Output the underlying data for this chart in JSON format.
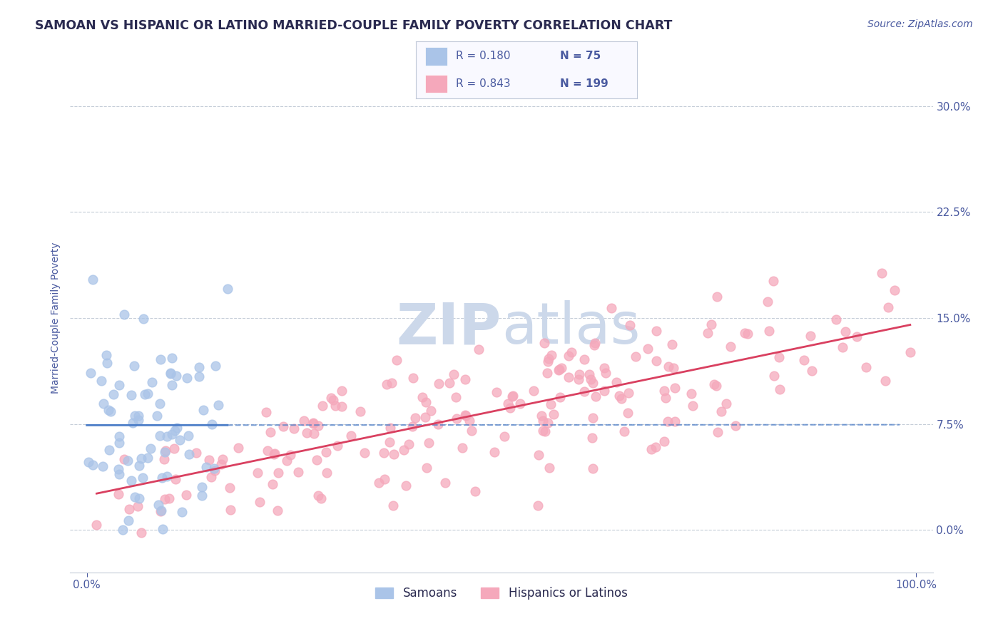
{
  "title": "SAMOAN VS HISPANIC OR LATINO MARRIED-COUPLE FAMILY POVERTY CORRELATION CHART",
  "source": "Source: ZipAtlas.com",
  "ylabel": "Married-Couple Family Poverty",
  "xlim": [
    -0.02,
    1.02
  ],
  "ylim": [
    -0.03,
    0.33
  ],
  "yticks": [
    0.0,
    0.075,
    0.15,
    0.225,
    0.3
  ],
  "ytick_labels": [
    "0.0%",
    "7.5%",
    "15.0%",
    "22.5%",
    "30.0%"
  ],
  "xtick_labels": [
    "0.0%",
    "100.0%"
  ],
  "xticks": [
    0.0,
    1.0
  ],
  "legend_R_samoan": "0.180",
  "legend_N_samoan": "75",
  "legend_R_hispanic": "0.843",
  "legend_N_hispanic": "199",
  "samoan_color": "#aac4e8",
  "hispanic_color": "#f5a8bb",
  "line_samoan_color": "#4a7cc7",
  "line_hispanic_color": "#d94060",
  "watermark_color": "#ccd8ea",
  "title_color": "#2a2a50",
  "axis_color": "#4a5aa0",
  "background_color": "#ffffff",
  "grid_color": "#c5cdd8",
  "title_fontsize": 12.5,
  "label_fontsize": 10,
  "tick_fontsize": 11,
  "source_fontsize": 10,
  "seed": 42,
  "samoan_N": 75,
  "hispanic_N": 199
}
